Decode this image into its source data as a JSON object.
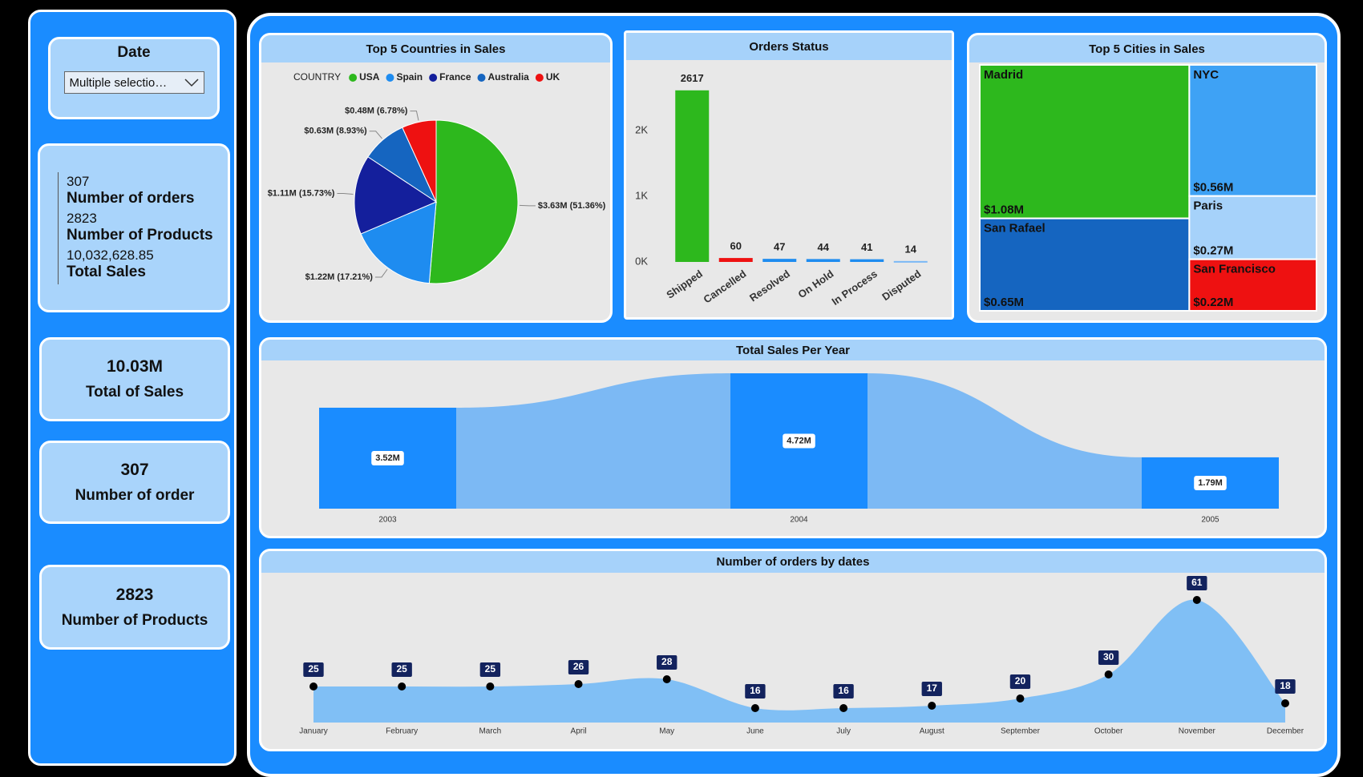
{
  "sidebar": {
    "date_filter": {
      "title": "Date",
      "selection": "Multiple selectio…"
    },
    "summary": [
      {
        "value": "307",
        "label": "Number of orders"
      },
      {
        "value": "2823",
        "label": "Number of Products"
      },
      {
        "value": "10,032,628.85",
        "label": "Total Sales"
      }
    ],
    "cards": [
      {
        "value": "10.03M",
        "label": "Total of Sales"
      },
      {
        "value": "307",
        "label": "Number of order"
      },
      {
        "value": "2823",
        "label": "Number of Products"
      }
    ]
  },
  "chart_data": [
    {
      "type": "pie",
      "title": "Top 5 Countries in Sales",
      "legend_title": "COUNTRY",
      "categories": [
        "USA",
        "Spain",
        "France",
        "Australia",
        "UK"
      ],
      "values": [
        3.63,
        1.22,
        1.11,
        0.63,
        0.48
      ],
      "value_labels": [
        "$3.63M (51.36%)",
        "$1.22M (17.21%)",
        "$1.11M (15.73%)",
        "$0.63M (8.93%)",
        "$0.48M (6.78%)"
      ],
      "colors": [
        "#2db81d",
        "#1e8cf0",
        "#141f9c",
        "#1565c0",
        "#ee1111"
      ],
      "legend": "top"
    },
    {
      "type": "bar",
      "title": "Orders Status",
      "categories": [
        "Shipped",
        "Cancelled",
        "Resolved",
        "On Hold",
        "In Process",
        "Disputed"
      ],
      "values": [
        2617,
        60,
        47,
        44,
        41,
        14
      ],
      "colors": [
        "#2db81d",
        "#ee1111",
        "#1e8cf0",
        "#1e8cf0",
        "#1e8cf0",
        "#7ab8f5"
      ],
      "ylim": [
        0,
        2700
      ],
      "yticks": [
        {
          "value": 0,
          "label": "0K"
        },
        {
          "value": 1000,
          "label": "1K"
        },
        {
          "value": 2000,
          "label": "2K"
        }
      ],
      "grid": false
    },
    {
      "type": "treemap",
      "title": "Top 5 Cities in Sales",
      "categories": [
        "Madrid",
        "San Rafael",
        "NYC",
        "Paris",
        "San Francisco"
      ],
      "values": [
        1.08,
        0.65,
        0.56,
        0.27,
        0.22
      ],
      "value_labels": [
        "$1.08M",
        "$0.65M",
        "$0.56M",
        "$0.27M",
        "$0.22M"
      ],
      "colors": [
        "#2db81d",
        "#1565c0",
        "#3ea2f5",
        "#a6d2fa",
        "#ee1111"
      ]
    },
    {
      "type": "ribbon",
      "title": "Total Sales Per Year",
      "categories": [
        "2003",
        "2004",
        "2005"
      ],
      "values": [
        3.52,
        4.72,
        1.79
      ],
      "value_labels": [
        "3.52M",
        "4.72M",
        "1.79M"
      ],
      "color": "#1a8cff",
      "ribbon_color": "#7cb9f4",
      "ylim": [
        0,
        5
      ]
    },
    {
      "type": "area",
      "title": "Number of orders by dates",
      "categories": [
        "January",
        "February",
        "March",
        "April",
        "May",
        "June",
        "July",
        "August",
        "September",
        "October",
        "November",
        "December"
      ],
      "values": [
        25,
        25,
        25,
        26,
        28,
        16,
        16,
        17,
        20,
        30,
        61,
        18
      ],
      "color": "#80bff5",
      "ylim": [
        10,
        65
      ]
    }
  ]
}
